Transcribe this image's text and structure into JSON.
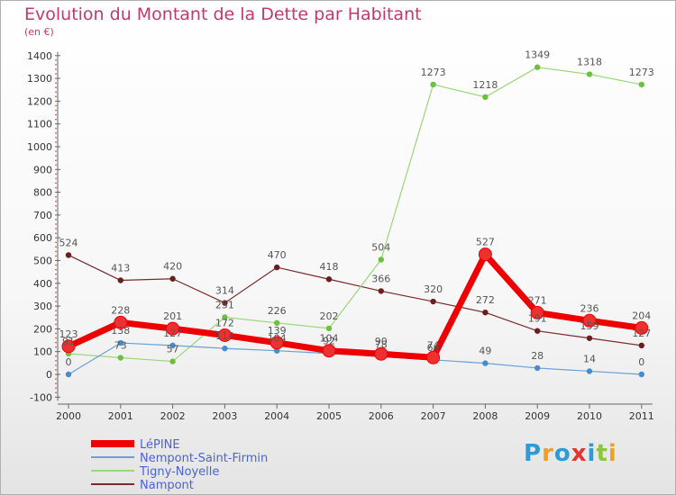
{
  "title": "Evolution du Montant de la Dette par Habitant",
  "subtitle": "(en €)",
  "logo": "Proxiti",
  "chart_data": {
    "type": "line",
    "title": "Evolution du Montant de la Dette par Habitant",
    "subtitle": "(en €)",
    "xlabel": "",
    "ylabel": "",
    "x": [
      "2000",
      "2001",
      "2002",
      "2003",
      "2004",
      "2005",
      "2006",
      "2007",
      "2008",
      "2009",
      "2010",
      "2011"
    ],
    "ylim": [
      -100,
      1400
    ],
    "yticks": [
      -100,
      0,
      100,
      200,
      300,
      400,
      500,
      600,
      700,
      800,
      900,
      1000,
      1100,
      1200,
      1300,
      1400
    ],
    "grid": false,
    "legend_position": "bottom-left",
    "series": [
      {
        "name": "LéPINE",
        "color": "#ee0000",
        "values": [
          123,
          228,
          201,
          172,
          139,
          104,
          90,
          74,
          527,
          271,
          236,
          204
        ],
        "labels": [
          "123",
          "228",
          "201",
          "172",
          "139",
          "104",
          "90",
          "74",
          "527",
          "271",
          "236",
          "204"
        ]
      },
      {
        "name": "Nempont-Saint-Firmin",
        "color": "#5b9ad8",
        "values": [
          0,
          138,
          127,
          114,
          104,
          92,
          78,
          64,
          49,
          28,
          14,
          0
        ],
        "labels": [
          "0",
          "138",
          "127",
          "114",
          "104",
          "92",
          "78",
          "64",
          "49",
          "28",
          "14",
          "0"
        ]
      },
      {
        "name": "Tigny-Noyelle",
        "color": "#8fd36c",
        "values": [
          91,
          73,
          57,
          251,
          226,
          202,
          504,
          1273,
          1218,
          1349,
          1318,
          1273
        ],
        "labels": [
          "91",
          "73",
          "57",
          "251",
          "226",
          "202",
          "504",
          "1273",
          "1218",
          "1349",
          "1318",
          "1273"
        ]
      },
      {
        "name": "Nampont",
        "color": "#7a2a2a",
        "values": [
          524,
          413,
          420,
          314,
          470,
          418,
          366,
          320,
          272,
          191,
          159,
          127
        ],
        "labels": [
          "524",
          "413",
          "420",
          "314",
          "470",
          "418",
          "366",
          "320",
          "272",
          "191",
          "159",
          "127"
        ]
      }
    ]
  }
}
